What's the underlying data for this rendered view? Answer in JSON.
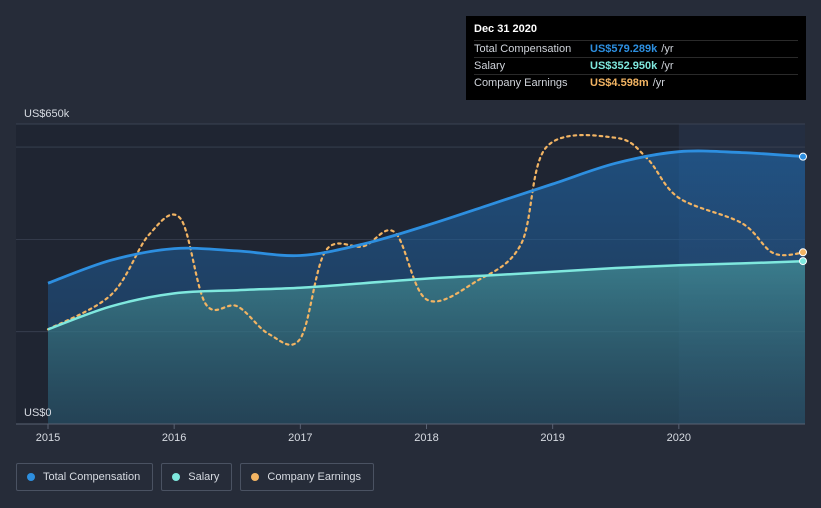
{
  "colors": {
    "total_compensation": "#2d8fe0",
    "salary": "#7fe8de",
    "company_earnings": "#f2b463",
    "background": "#262c39",
    "plot_background": "#1f2532"
  },
  "tooltip": {
    "date": "Dec 31 2020",
    "rows": [
      {
        "label": "Total Compensation",
        "value": "US$579.289k",
        "unit": "/yr",
        "color": "#2d8fe0"
      },
      {
        "label": "Salary",
        "value": "US$352.950k",
        "unit": "/yr",
        "color": "#7fe8de"
      },
      {
        "label": "Company Earnings",
        "value": "US$4.598m",
        "unit": "/yr",
        "color": "#f2b463"
      }
    ]
  },
  "legend": [
    {
      "label": "Total Compensation",
      "color": "#2d8fe0"
    },
    {
      "label": "Salary",
      "color": "#7fe8de"
    },
    {
      "label": "Company Earnings",
      "color": "#f2b463"
    }
  ],
  "chart_data": {
    "type": "area",
    "title": "",
    "xlabel": "",
    "ylabel": "",
    "y_top_label": "US$650k",
    "y_bottom_label": "US$0",
    "ylim": [
      0,
      650
    ],
    "xlim": [
      2015,
      2021
    ],
    "x_ticks": [
      {
        "value": 2015,
        "label": "2015"
      },
      {
        "value": 2016,
        "label": "2016"
      },
      {
        "value": 2017,
        "label": "2017"
      },
      {
        "value": 2018,
        "label": "2018"
      },
      {
        "value": 2019,
        "label": "2019"
      },
      {
        "value": 2020,
        "label": "2020"
      }
    ],
    "highlight_from": 2020,
    "series": [
      {
        "name": "Total Compensation",
        "unit": "US$k",
        "points": [
          [
            2015,
            305
          ],
          [
            2015.5,
            355
          ],
          [
            2016,
            380
          ],
          [
            2016.5,
            375
          ],
          [
            2017,
            365
          ],
          [
            2017.5,
            390
          ],
          [
            2018,
            430
          ],
          [
            2018.5,
            475
          ],
          [
            2019,
            520
          ],
          [
            2019.5,
            565
          ],
          [
            2020,
            590
          ],
          [
            2020.5,
            588
          ],
          [
            2021,
            579.289
          ]
        ]
      },
      {
        "name": "Salary",
        "unit": "US$k",
        "points": [
          [
            2015,
            205
          ],
          [
            2015.5,
            255
          ],
          [
            2016,
            283
          ],
          [
            2016.5,
            290
          ],
          [
            2017,
            295
          ],
          [
            2017.5,
            305
          ],
          [
            2018,
            315
          ],
          [
            2018.5,
            322
          ],
          [
            2019,
            330
          ],
          [
            2019.5,
            338
          ],
          [
            2020,
            344
          ],
          [
            2020.5,
            348
          ],
          [
            2021,
            352.95
          ]
        ]
      },
      {
        "name": "Company Earnings",
        "unit": "relative scale",
        "dashed": true,
        "points": [
          [
            2015,
            205
          ],
          [
            2015.5,
            280
          ],
          [
            2015.8,
            410
          ],
          [
            2016.05,
            445
          ],
          [
            2016.25,
            260
          ],
          [
            2016.5,
            255
          ],
          [
            2016.75,
            195
          ],
          [
            2017,
            185
          ],
          [
            2017.2,
            375
          ],
          [
            2017.5,
            385
          ],
          [
            2017.75,
            415
          ],
          [
            2018,
            270
          ],
          [
            2018.4,
            310
          ],
          [
            2018.75,
            390
          ],
          [
            2018.95,
            600
          ],
          [
            2019.5,
            620
          ],
          [
            2019.75,
            575
          ],
          [
            2020,
            490
          ],
          [
            2020.5,
            435
          ],
          [
            2020.75,
            370
          ],
          [
            2021,
            372
          ]
        ]
      }
    ]
  }
}
